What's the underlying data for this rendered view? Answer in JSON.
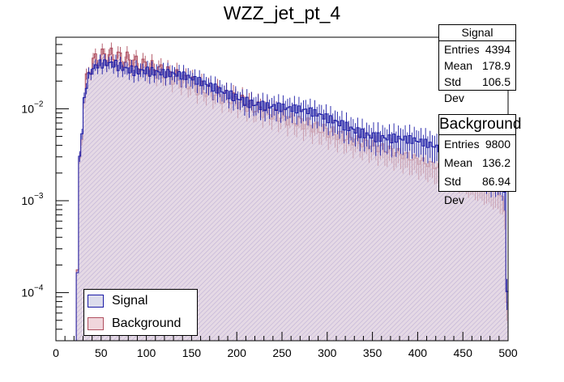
{
  "colors": {
    "signal_line": "#1a1aa6",
    "signal_fill": "#dcdcec",
    "bkg_line": "#b05060",
    "bkg_fill": "#f0d6dc",
    "hatch": "#9a7ab8"
  },
  "chart_data": {
    "type": "histogram",
    "title": "WZZ_jet_pt_4",
    "xlabel": "",
    "ylabel": "",
    "xlim": [
      0,
      500
    ],
    "ylim": [
      3e-05,
      0.06
    ],
    "yscale": "log",
    "x_ticks": [
      "0",
      "50",
      "100",
      "150",
      "200",
      "250",
      "300",
      "350",
      "400",
      "450",
      "500"
    ],
    "y_ticks": [
      {
        "value": 0.0001,
        "base": "10",
        "exp": "−4"
      },
      {
        "value": 0.001,
        "base": "10",
        "exp": "−3"
      },
      {
        "value": 0.01,
        "base": "10",
        "exp": "−2"
      }
    ],
    "bin_width": 2.5,
    "series": [
      {
        "name": "Signal",
        "color_key": "signal",
        "shape": [
          [
            20,
            1e-05
          ],
          [
            22,
            1e-05
          ],
          [
            24,
            0.00022
          ],
          [
            26,
            0.0025
          ],
          [
            28,
            0.004
          ],
          [
            30,
            0.0085
          ],
          [
            33,
            0.016
          ],
          [
            36,
            0.021
          ],
          [
            40,
            0.025
          ],
          [
            45,
            0.029
          ],
          [
            50,
            0.031
          ],
          [
            55,
            0.032
          ],
          [
            60,
            0.033
          ],
          [
            65,
            0.033
          ],
          [
            70,
            0.032
          ],
          [
            75,
            0.031
          ],
          [
            80,
            0.03
          ],
          [
            90,
            0.029
          ],
          [
            100,
            0.028
          ],
          [
            120,
            0.024
          ],
          [
            140,
            0.021
          ],
          [
            160,
            0.018
          ],
          [
            180,
            0.016
          ],
          [
            200,
            0.0145
          ],
          [
            220,
            0.0125
          ],
          [
            240,
            0.011
          ],
          [
            260,
            0.0095
          ],
          [
            280,
            0.0085
          ],
          [
            300,
            0.0075
          ],
          [
            320,
            0.0068
          ],
          [
            340,
            0.006
          ],
          [
            360,
            0.0053
          ],
          [
            380,
            0.0047
          ],
          [
            400,
            0.0041
          ],
          [
            420,
            0.0035
          ],
          [
            440,
            0.0031
          ],
          [
            460,
            0.0027
          ],
          [
            480,
            0.0022
          ],
          [
            496,
            0.0018
          ],
          [
            497.5,
            0.00015
          ],
          [
            500,
            0.0001
          ]
        ],
        "stats": {
          "title": "Signal",
          "entries": "4394",
          "mean": "178.9",
          "std_dev": "106.5"
        }
      },
      {
        "name": "Background",
        "color_key": "bkg",
        "shape": [
          [
            20,
            1e-05
          ],
          [
            22,
            1e-05
          ],
          [
            24,
            0.00022
          ],
          [
            26,
            0.0025
          ],
          [
            28,
            0.0045
          ],
          [
            30,
            0.009
          ],
          [
            33,
            0.018
          ],
          [
            36,
            0.026
          ],
          [
            40,
            0.031
          ],
          [
            45,
            0.035
          ],
          [
            50,
            0.037
          ],
          [
            55,
            0.038
          ],
          [
            60,
            0.038
          ],
          [
            65,
            0.037
          ],
          [
            70,
            0.036
          ],
          [
            75,
            0.035
          ],
          [
            80,
            0.034
          ],
          [
            90,
            0.031
          ],
          [
            100,
            0.029
          ],
          [
            120,
            0.025
          ],
          [
            140,
            0.021
          ],
          [
            160,
            0.017
          ],
          [
            180,
            0.0145
          ],
          [
            200,
            0.0125
          ],
          [
            220,
            0.0105
          ],
          [
            240,
            0.009
          ],
          [
            260,
            0.0078
          ],
          [
            280,
            0.0068
          ],
          [
            300,
            0.0058
          ],
          [
            320,
            0.005
          ],
          [
            340,
            0.0043
          ],
          [
            360,
            0.0038
          ],
          [
            380,
            0.0033
          ],
          [
            400,
            0.0028
          ],
          [
            420,
            0.0024
          ],
          [
            440,
            0.0021
          ],
          [
            460,
            0.0017
          ],
          [
            480,
            0.0014
          ],
          [
            496,
            0.0011
          ],
          [
            497.5,
            0.0001
          ],
          [
            500,
            6e-05
          ]
        ],
        "stats": {
          "title": "Background",
          "entries": "9800",
          "mean": "136.2",
          "std_dev": "86.94"
        }
      }
    ],
    "legend": {
      "position": "bottom-left",
      "items": [
        "Signal",
        "Background"
      ]
    }
  },
  "labels": {
    "entries": "Entries",
    "mean": "Mean",
    "std_dev": "Std Dev"
  }
}
